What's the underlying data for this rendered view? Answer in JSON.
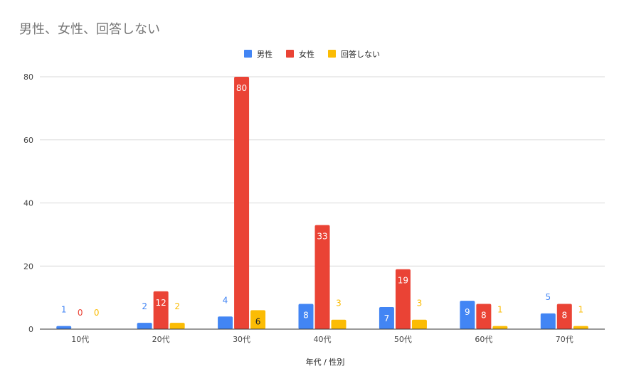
{
  "chart_data": {
    "type": "bar",
    "title": "男性、女性、回答しない",
    "xlabel": "年代 / 性別",
    "ylabel": "",
    "categories": [
      "10代",
      "20代",
      "30代",
      "40代",
      "50代",
      "60代",
      "70代"
    ],
    "series": [
      {
        "name": "男性",
        "color": "#4285f4",
        "values": [
          1,
          2,
          4,
          8,
          7,
          9,
          5
        ]
      },
      {
        "name": "女性",
        "color": "#ea4335",
        "values": [
          0,
          12,
          80,
          33,
          19,
          8,
          8
        ]
      },
      {
        "name": "回答しない",
        "color": "#fbbc04",
        "values": [
          0,
          2,
          6,
          3,
          3,
          1,
          1
        ]
      }
    ],
    "ylim": [
      0,
      80
    ],
    "yticks": [
      0,
      20,
      40,
      60,
      80
    ],
    "grid": true,
    "legend_position": "top-center",
    "data_labels": true
  }
}
